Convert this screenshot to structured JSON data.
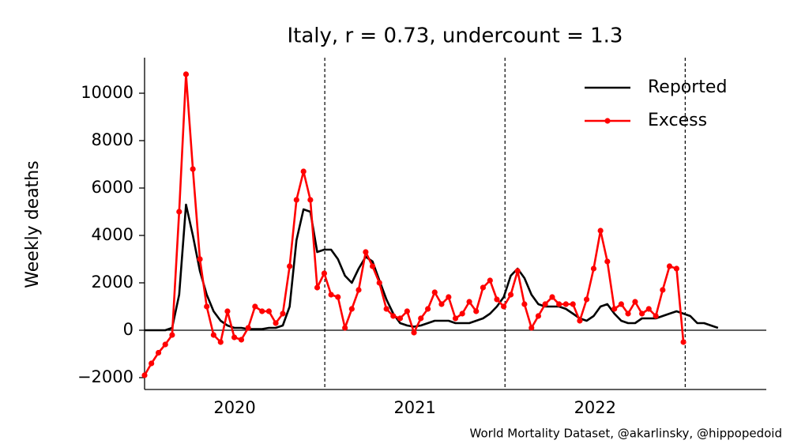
{
  "chart_data": {
    "type": "line",
    "title": "Italy, r = 0.73, undercount = 1.3",
    "ylabel": "Weekly deaths",
    "source": "World Mortality Dataset, @akarlinsky, @hippopedoid",
    "xlim": [
      2020,
      2023.45
    ],
    "xticks": [
      {
        "value": 2020.5,
        "label": "2020"
      },
      {
        "value": 2021.5,
        "label": "2021"
      },
      {
        "value": 2022.5,
        "label": "2022"
      }
    ],
    "ylim": [
      -2500,
      11500
    ],
    "yticks": [
      {
        "value": -2000,
        "label": "−2000"
      },
      0,
      2000,
      4000,
      6000,
      8000,
      10000
    ],
    "vlines": [
      2021,
      2022,
      2023
    ],
    "hlines": [
      0
    ],
    "legend": "upper right",
    "x": [
      2020.0,
      2020.038,
      2020.077,
      2020.115,
      2020.153,
      2020.192,
      2020.23,
      2020.268,
      2020.307,
      2020.345,
      2020.383,
      2020.422,
      2020.46,
      2020.498,
      2020.537,
      2020.575,
      2020.613,
      2020.652,
      2020.69,
      2020.728,
      2020.767,
      2020.805,
      2020.843,
      2020.882,
      2020.92,
      2020.958,
      2020.997,
      2021.035,
      2021.073,
      2021.112,
      2021.15,
      2021.188,
      2021.227,
      2021.265,
      2021.303,
      2021.342,
      2021.38,
      2021.418,
      2021.457,
      2021.495,
      2021.533,
      2021.572,
      2021.61,
      2021.648,
      2021.687,
      2021.725,
      2021.763,
      2021.802,
      2021.84,
      2021.878,
      2021.917,
      2021.955,
      2021.993,
      2022.032,
      2022.07,
      2022.108,
      2022.147,
      2022.185,
      2022.223,
      2022.262,
      2022.3,
      2022.338,
      2022.377,
      2022.415,
      2022.453,
      2022.492,
      2022.53,
      2022.568,
      2022.607,
      2022.645,
      2022.683,
      2022.722,
      2022.76,
      2022.798,
      2022.837,
      2022.875,
      2022.913,
      2022.952,
      2022.99,
      2023.028,
      2023.067,
      2023.105,
      2023.143,
      2023.182
    ],
    "series": [
      {
        "name": "Reported",
        "color": "#000000",
        "markers": false,
        "values": [
          0,
          0,
          0,
          0,
          100,
          1500,
          5300,
          4000,
          2500,
          1500,
          800,
          400,
          200,
          100,
          100,
          50,
          50,
          50,
          100,
          100,
          200,
          1000,
          3800,
          5100,
          5000,
          3300,
          3400,
          3400,
          3000,
          2300,
          2000,
          2600,
          3100,
          2900,
          2100,
          1300,
          700,
          300,
          200,
          150,
          200,
          300,
          400,
          400,
          400,
          300,
          300,
          300,
          400,
          500,
          700,
          1000,
          1400,
          2300,
          2600,
          2200,
          1500,
          1100,
          1000,
          1000,
          1000,
          900,
          700,
          500,
          400,
          600,
          1000,
          1100,
          700,
          400,
          300,
          300,
          500,
          500,
          500,
          600,
          700,
          800,
          700,
          600,
          300,
          300,
          200,
          100
        ]
      },
      {
        "name": "Excess",
        "color": "#ff0000",
        "markers": true,
        "values": [
          -1900,
          -1400,
          -950,
          -600,
          -200,
          5000,
          10800,
          6800,
          3000,
          1000,
          -200,
          -500,
          800,
          -300,
          -400,
          100,
          1000,
          800,
          800,
          300,
          700,
          2700,
          5500,
          6700,
          5500,
          1800,
          2400,
          1500,
          1400,
          100,
          900,
          1700,
          3300,
          2700,
          2000,
          900,
          600,
          500,
          800,
          -100,
          500,
          900,
          1600,
          1100,
          1400,
          500,
          700,
          1200,
          800,
          1800,
          2100,
          1300,
          1000,
          1500,
          2500,
          1100,
          100,
          600,
          1100,
          1400,
          1100,
          1100,
          1100,
          400,
          1300,
          2600,
          4200,
          2900,
          900,
          1100,
          700,
          1200,
          700,
          900,
          600,
          1700,
          2700,
          2600,
          -500,
          null,
          null,
          null,
          null,
          null
        ]
      }
    ]
  }
}
